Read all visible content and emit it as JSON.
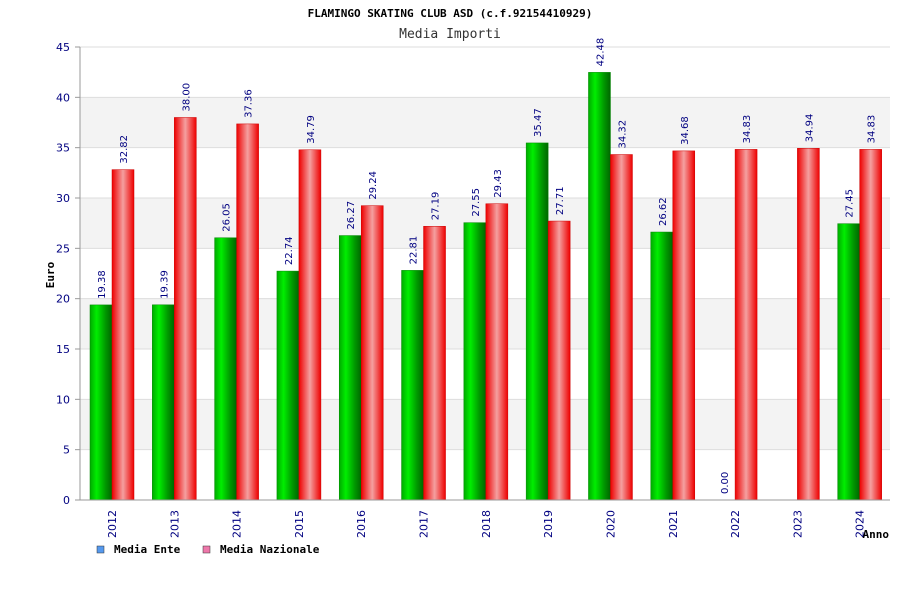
{
  "chart_data": {
    "type": "bar",
    "title": "FLAMINGO SKATING CLUB ASD (c.f.92154410929)",
    "subtitle": "Media Importi",
    "xlabel": "Anno",
    "ylabel": "Euro",
    "ylim": [
      0,
      45
    ],
    "yticks": [
      "0",
      "5",
      "10",
      "15",
      "20",
      "25",
      "30",
      "35",
      "40",
      "45"
    ],
    "grid": true,
    "legend_position": "bottom-left",
    "categories": [
      "2012",
      "2013",
      "2014",
      "2015",
      "2016",
      "2017",
      "2018",
      "2019",
      "2020",
      "2021",
      "2022",
      "2023",
      "2024"
    ],
    "series": [
      {
        "name": "Media Ente",
        "color": "#00cc00",
        "values": [
          19.38,
          19.39,
          26.05,
          22.74,
          26.27,
          22.81,
          27.55,
          35.47,
          42.48,
          26.62,
          0.0,
          null,
          27.45
        ],
        "labels": [
          "19.38",
          "19.39",
          "26.05",
          "22.74",
          "26.27",
          "22.81",
          "27.55",
          "35.47",
          "42.48",
          "26.62",
          "0.00",
          "",
          "27.45"
        ]
      },
      {
        "name": "Media Nazionale",
        "color": "#ee1111",
        "values": [
          32.82,
          38.0,
          37.36,
          34.79,
          29.24,
          27.19,
          29.43,
          27.71,
          34.32,
          34.68,
          34.83,
          34.94,
          34.83
        ],
        "labels": [
          "32.82",
          "38.00",
          "37.36",
          "34.79",
          "29.24",
          "27.19",
          "29.43",
          "27.71",
          "34.32",
          "34.68",
          "34.83",
          "34.94",
          "34.83"
        ]
      }
    ],
    "legend": [
      {
        "name": "Media Ente",
        "swatch_color": "#5599ee"
      },
      {
        "name": "Media Nazionale",
        "swatch_color": "#ee77aa"
      }
    ]
  }
}
